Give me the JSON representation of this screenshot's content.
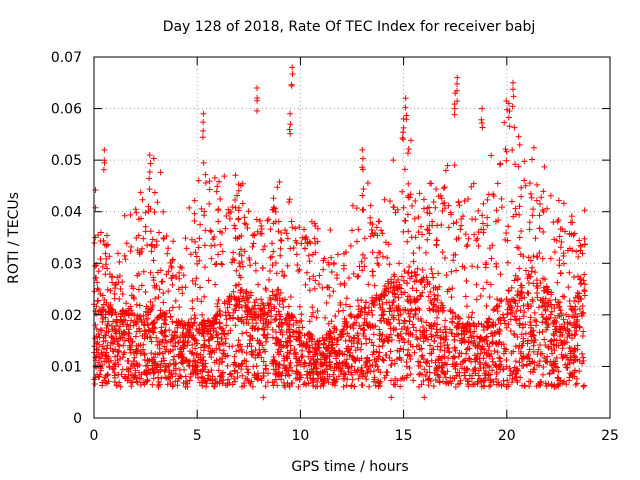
{
  "chart_data": {
    "type": "scatter",
    "title": "Day 128 of 2018, Rate Of TEC Index for receiver babj",
    "xlabel": "GPS time / hours",
    "ylabel": "ROTI / TECUs",
    "xlim": [
      0,
      25
    ],
    "ylim": [
      0,
      0.07
    ],
    "xticks": [
      0,
      5,
      10,
      15,
      20,
      25
    ],
    "yticks": [
      0,
      0.01,
      0.02,
      0.03,
      0.04,
      0.05,
      0.06,
      0.07
    ],
    "xtick_labels": [
      "0",
      "5",
      "10",
      "15",
      "20",
      "25"
    ],
    "ytick_labels": [
      "0",
      "0.01",
      "0.02",
      "0.03",
      "0.04",
      "0.05",
      "0.06",
      "0.07"
    ],
    "grid": true,
    "marker": "+",
    "color": "#ff0000",
    "density_profile": {
      "x": [
        0,
        1,
        2,
        3,
        4,
        5,
        6,
        7,
        8,
        9,
        10,
        11,
        12,
        13,
        14,
        15,
        16,
        17,
        18,
        19,
        20,
        21,
        22,
        23,
        23.8
      ],
      "y_typical": [
        0.02,
        0.015,
        0.016,
        0.016,
        0.014,
        0.014,
        0.015,
        0.019,
        0.016,
        0.018,
        0.013,
        0.012,
        0.014,
        0.016,
        0.018,
        0.02,
        0.02,
        0.016,
        0.014,
        0.014,
        0.018,
        0.022,
        0.018,
        0.015,
        0.02
      ],
      "y_upper": [
        0.045,
        0.03,
        0.045,
        0.05,
        0.03,
        0.05,
        0.045,
        0.045,
        0.045,
        0.045,
        0.042,
        0.035,
        0.035,
        0.045,
        0.042,
        0.055,
        0.045,
        0.05,
        0.045,
        0.045,
        0.06,
        0.055,
        0.045,
        0.04,
        0.04
      ]
    },
    "notable_points": [
      {
        "x": 0.5,
        "y": 0.052
      },
      {
        "x": 2.7,
        "y": 0.051
      },
      {
        "x": 5.3,
        "y": 0.059
      },
      {
        "x": 7.9,
        "y": 0.064
      },
      {
        "x": 9.6,
        "y": 0.068
      },
      {
        "x": 9.5,
        "y": 0.059
      },
      {
        "x": 13.0,
        "y": 0.052
      },
      {
        "x": 15.1,
        "y": 0.062
      },
      {
        "x": 15.0,
        "y": 0.058
      },
      {
        "x": 17.6,
        "y": 0.066
      },
      {
        "x": 17.5,
        "y": 0.063
      },
      {
        "x": 18.8,
        "y": 0.06
      },
      {
        "x": 20.3,
        "y": 0.065
      },
      {
        "x": 20.1,
        "y": 0.061
      },
      {
        "x": 16.0,
        "y": 0.004
      },
      {
        "x": 8.2,
        "y": 0.004
      },
      {
        "x": 14.4,
        "y": 0.004
      }
    ]
  }
}
